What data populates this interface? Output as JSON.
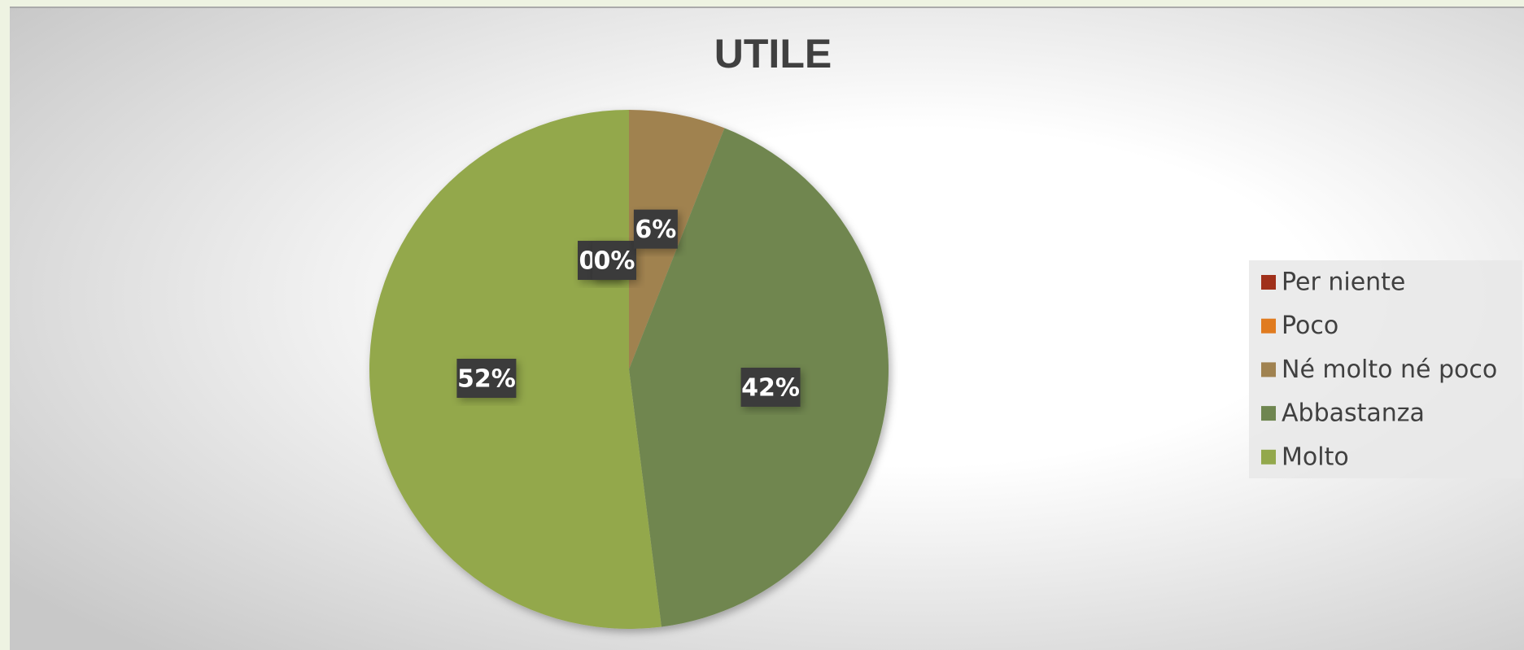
{
  "chart_data": {
    "type": "pie",
    "title": "UTILE",
    "categories": [
      "Per niente",
      "Poco",
      "Né molto né poco",
      "Abbastanza",
      "Molto"
    ],
    "values": [
      0,
      0,
      6,
      42,
      52
    ],
    "value_labels": [
      "0%",
      "0%",
      "6%",
      "42%",
      "52%"
    ],
    "colors": [
      "#a0301a",
      "#e07b1f",
      "#a08250",
      "#6f8650",
      "#93a84c"
    ],
    "legend": "right"
  }
}
